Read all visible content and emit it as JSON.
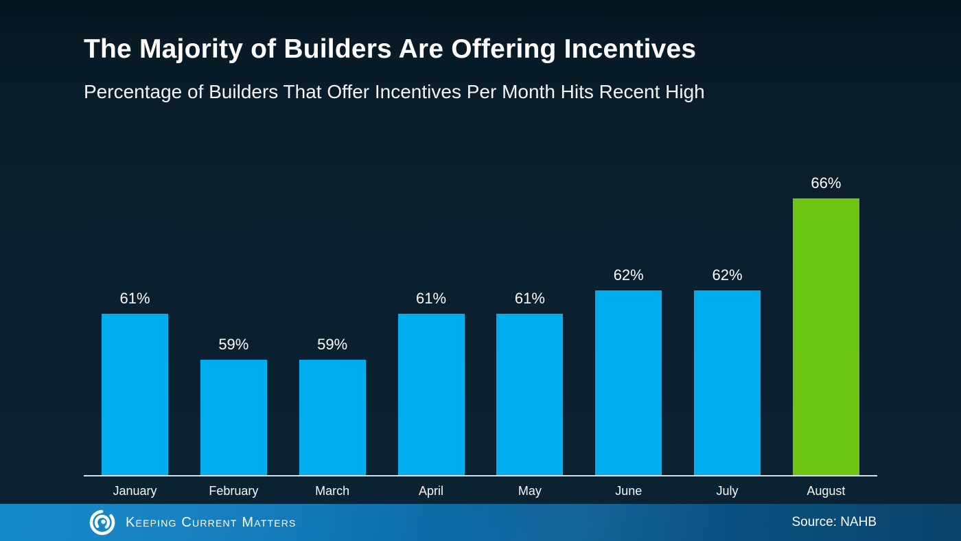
{
  "header": {
    "title": "The Majority of Builders Are Offering Incentives",
    "subtitle": "Percentage of Builders That Offer Incentives Per Month Hits Recent High"
  },
  "chart_data": {
    "type": "bar",
    "title": "The Majority of Builders Are Offering Incentives",
    "subtitle": "Percentage of Builders That Offer Incentives Per Month Hits Recent High",
    "categories": [
      "January",
      "February",
      "March",
      "April",
      "May",
      "June",
      "July",
      "August"
    ],
    "values": [
      61,
      59,
      59,
      61,
      61,
      62,
      62,
      66
    ],
    "data_labels": [
      "61%",
      "59%",
      "59%",
      "61%",
      "61%",
      "62%",
      "62%",
      "66%"
    ],
    "unit": "%",
    "xlabel": "",
    "ylabel": "",
    "ylim": [
      54,
      68
    ],
    "grid": false,
    "legend_position": "none",
    "bar_color": "#00AEEF",
    "highlight_index": 7,
    "highlight_color": "#6CC513",
    "axis_line_color": "#D9DFE3",
    "label_color": "#FFFFFF"
  },
  "footer": {
    "brand": "Keeping Current Matters",
    "logo_icon": "kcm-swirl-icon",
    "source": "Source: NAHB"
  },
  "colors": {
    "background_top": "#061520",
    "background_bottom": "#0B2334",
    "footer_left": "#0A84C9",
    "footer_right": "#0A4268"
  }
}
